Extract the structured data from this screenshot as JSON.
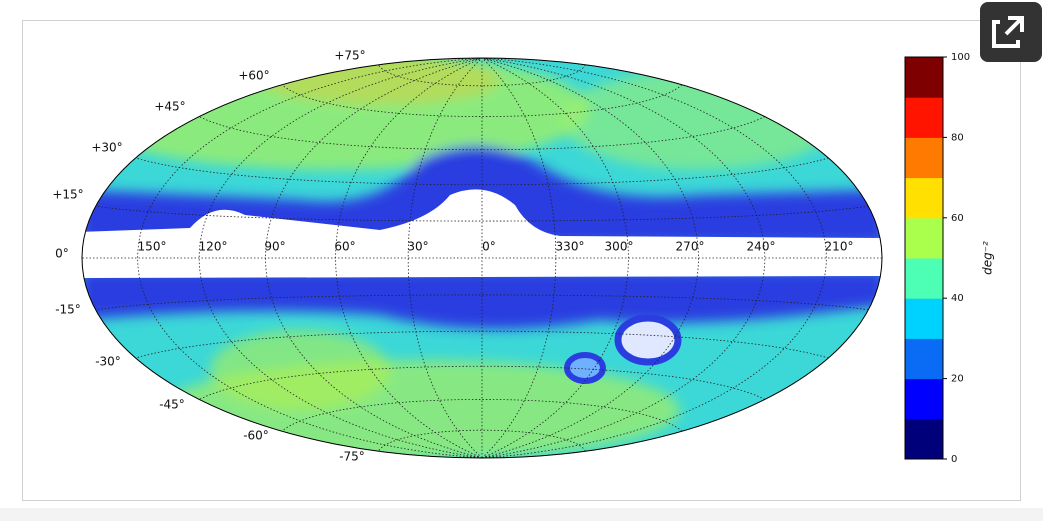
{
  "map": {
    "lat_labels": [
      "+75°",
      "+60°",
      "+45°",
      "+30°",
      "+15°",
      "0°",
      "-15°",
      "-30°",
      "-45°",
      "-60°",
      "-75°"
    ],
    "lon_labels": [
      "150°",
      "120°",
      "90°",
      "60°",
      "30°",
      "0°",
      "330°",
      "300°",
      "270°",
      "240°",
      "210°"
    ],
    "colorbar": {
      "label": "deg⁻²",
      "lim": [
        0,
        100
      ],
      "ticks": [
        0,
        20,
        40,
        60,
        80,
        100
      ],
      "colors": [
        "#00007a",
        "#0000ff",
        "#0a6cf5",
        "#00d2ff",
        "#4dffb4",
        "#aaff4d",
        "#ffe000",
        "#ff7a00",
        "#ff1400",
        "#7f0000"
      ]
    }
  }
}
